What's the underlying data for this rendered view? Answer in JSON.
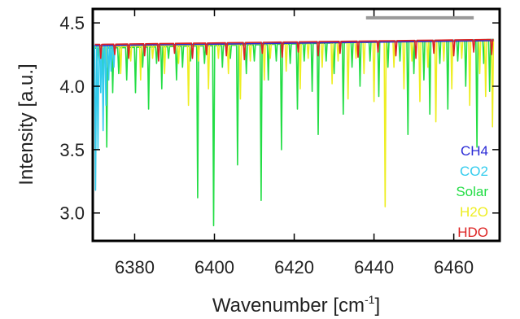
{
  "chart_data": {
    "type": "line",
    "xlabel": "Wavenumber [cm",
    "xlabel_superscript": "-1",
    "xlabel_suffix": "]",
    "ylabel": "Intensity [a.u.]",
    "xlim": [
      6369.5,
      6471.5
    ],
    "ylim": [
      2.78,
      4.61
    ],
    "xticks": [
      6380,
      6400,
      6420,
      6440,
      6460
    ],
    "yticks": [
      3.0,
      3.5,
      4.0,
      4.5
    ],
    "xtick_labels": [
      "6380",
      "6400",
      "6420",
      "6440",
      "6460"
    ],
    "ytick_labels": [
      "3.0",
      "3.5",
      "4.0",
      "4.5"
    ],
    "legend_placement": "bottom-right",
    "scale_bar": {
      "x_start": 6438,
      "x_end": 6465,
      "y": 4.54,
      "color": "#999999"
    },
    "series": [
      {
        "name": "CH4",
        "color": "#2b2bd6",
        "baseline_start": 4.32,
        "baseline_end": 4.36,
        "lines": []
      },
      {
        "name": "CO2",
        "color": "#33ccee",
        "baseline_start": 4.32,
        "baseline_end": 4.37,
        "lines": [
          [
            6370.2,
            3.18
          ],
          [
            6370.8,
            3.5
          ],
          [
            6371.5,
            3.95
          ],
          [
            6372.1,
            3.65
          ],
          [
            6372.8,
            3.85
          ],
          [
            6373.5,
            4.05
          ],
          [
            6374.1,
            4.12
          ],
          [
            6374.8,
            4.15
          ]
        ]
      },
      {
        "name": "Solar",
        "color": "#22dd44",
        "baseline_start": 4.3,
        "baseline_end": 4.37,
        "lines": [
          [
            6371.0,
            4.2
          ],
          [
            6372.0,
            4.05
          ],
          [
            6373.0,
            3.52
          ],
          [
            6374.5,
            3.95
          ],
          [
            6376.0,
            4.1
          ],
          [
            6378.0,
            4.05
          ],
          [
            6380.2,
            3.95
          ],
          [
            6382.0,
            4.15
          ],
          [
            6383.5,
            3.82
          ],
          [
            6385.5,
            4.18
          ],
          [
            6386.8,
            3.98
          ],
          [
            6388.5,
            4.22
          ],
          [
            6390.5,
            4.05
          ],
          [
            6392.0,
            4.15
          ],
          [
            6394.0,
            4.2
          ],
          [
            6395.8,
            3.12
          ],
          [
            6397.5,
            4.18
          ],
          [
            6399.8,
            2.9
          ],
          [
            6402.0,
            4.15
          ],
          [
            6404.0,
            4.22
          ],
          [
            6405.8,
            3.38
          ],
          [
            6408.0,
            4.1
          ],
          [
            6410.0,
            4.2
          ],
          [
            6411.7,
            3.1
          ],
          [
            6413.5,
            4.05
          ],
          [
            6415.5,
            4.2
          ],
          [
            6416.8,
            3.5
          ],
          [
            6419.0,
            4.18
          ],
          [
            6420.8,
            3.82
          ],
          [
            6422.5,
            4.2
          ],
          [
            6424.5,
            3.96
          ],
          [
            6426.0,
            3.62
          ],
          [
            6428.0,
            4.2
          ],
          [
            6430.0,
            4.1
          ],
          [
            6432.3,
            3.78
          ],
          [
            6434.5,
            4.15
          ],
          [
            6436.5,
            4.0
          ],
          [
            6439.0,
            4.2
          ],
          [
            6441.2,
            3.92
          ],
          [
            6443.5,
            4.15
          ],
          [
            6446.5,
            4.2
          ],
          [
            6448.5,
            3.62
          ],
          [
            6450.0,
            4.1
          ],
          [
            6452.5,
            4.05
          ],
          [
            6454.0,
            3.78
          ],
          [
            6456.5,
            4.18
          ],
          [
            6458.5,
            3.82
          ],
          [
            6461.0,
            4.2
          ],
          [
            6463.0,
            4.0
          ],
          [
            6465.8,
            3.52
          ],
          [
            6467.5,
            4.18
          ],
          [
            6469.0,
            3.96
          ]
        ]
      },
      {
        "name": "H2O",
        "color": "#eeee22",
        "baseline_start": 4.31,
        "baseline_end": 4.37,
        "lines": [
          [
            6373.0,
            4.15
          ],
          [
            6376.5,
            4.1
          ],
          [
            6379.0,
            4.2
          ],
          [
            6381.5,
            4.05
          ],
          [
            6384.5,
            4.22
          ],
          [
            6387.5,
            4.1
          ],
          [
            6391.0,
            4.18
          ],
          [
            6393.5,
            3.85
          ],
          [
            6396.0,
            4.2
          ],
          [
            6398.5,
            3.98
          ],
          [
            6401.0,
            4.22
          ],
          [
            6403.5,
            4.1
          ],
          [
            6406.5,
            3.9
          ],
          [
            6409.0,
            4.2
          ],
          [
            6412.5,
            4.05
          ],
          [
            6414.0,
            4.22
          ],
          [
            6418.0,
            4.12
          ],
          [
            6421.5,
            3.98
          ],
          [
            6423.5,
            4.22
          ],
          [
            6427.0,
            4.15
          ],
          [
            6429.5,
            4.02
          ],
          [
            6431.0,
            4.2
          ],
          [
            6433.5,
            3.9
          ],
          [
            6435.5,
            4.22
          ],
          [
            6437.5,
            4.1
          ],
          [
            6440.0,
            3.88
          ],
          [
            6442.8,
            3.05
          ],
          [
            6445.0,
            4.15
          ],
          [
            6447.5,
            3.98
          ],
          [
            6449.5,
            4.2
          ],
          [
            6451.5,
            3.88
          ],
          [
            6453.5,
            4.15
          ],
          [
            6455.5,
            3.72
          ],
          [
            6457.5,
            4.2
          ],
          [
            6459.5,
            3.98
          ],
          [
            6462.0,
            4.22
          ],
          [
            6464.0,
            3.85
          ],
          [
            6466.5,
            4.1
          ],
          [
            6468.0,
            3.92
          ],
          [
            6469.7,
            3.68
          ]
        ]
      },
      {
        "name": "HDO",
        "color": "#dd2222",
        "baseline_start": 4.33,
        "baseline_end": 4.37,
        "lines": [
          [
            6371.5,
            4.22
          ],
          [
            6375.0,
            4.25
          ],
          [
            6378.5,
            4.22
          ],
          [
            6382.5,
            4.24
          ],
          [
            6386.0,
            4.2
          ],
          [
            6390.0,
            4.26
          ],
          [
            6394.5,
            4.22
          ],
          [
            6398.0,
            4.25
          ],
          [
            6403.0,
            4.24
          ],
          [
            6407.5,
            4.21
          ],
          [
            6412.0,
            4.26
          ],
          [
            6417.0,
            4.23
          ],
          [
            6421.0,
            4.27
          ],
          [
            6426.0,
            4.24
          ],
          [
            6431.5,
            4.26
          ],
          [
            6436.0,
            4.23
          ],
          [
            6441.0,
            4.27
          ],
          [
            6445.5,
            4.24
          ],
          [
            6450.5,
            4.22
          ],
          [
            6455.0,
            4.26
          ],
          [
            6460.0,
            4.24
          ],
          [
            6465.0,
            4.27
          ],
          [
            6469.5,
            4.25
          ]
        ]
      }
    ]
  }
}
